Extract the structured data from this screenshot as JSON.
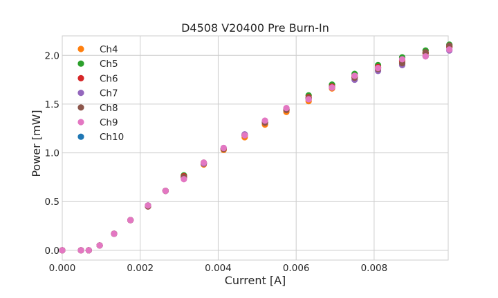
{
  "chart_data": {
    "type": "scatter",
    "title": "D4508 V20400 Pre Burn-In",
    "xlabel": "Current [A]",
    "ylabel": "Power [mW]",
    "xlim": [
      0.0,
      0.0099
    ],
    "ylim": [
      -0.1,
      2.2
    ],
    "x_ticks": [
      "0.000",
      "0.002",
      "0.004",
      "0.006",
      "0.008"
    ],
    "x_tick_values": [
      0.0,
      0.002,
      0.004,
      0.006,
      0.008
    ],
    "y_ticks": [
      "0.0",
      "0.5",
      "1.0",
      "1.5",
      "2.0"
    ],
    "y_tick_values": [
      0.0,
      0.5,
      1.0,
      1.5,
      2.0
    ],
    "grid": true,
    "legend_position": "upper-left",
    "x": [
      0.0,
      0.00048,
      0.00068,
      0.00096,
      0.00133,
      0.00175,
      0.0022,
      0.00265,
      0.00312,
      0.00363,
      0.00414,
      0.00468,
      0.0052,
      0.00575,
      0.00632,
      0.00692,
      0.0075,
      0.0081,
      0.00872,
      0.00932,
      0.00993
    ],
    "series": [
      {
        "name": "Ch4",
        "color": "#ff7f0e",
        "values": [
          0.0,
          0.0,
          0.0,
          0.05,
          0.17,
          0.31,
          0.46,
          0.61,
          0.75,
          0.88,
          1.03,
          1.16,
          1.29,
          1.42,
          1.53,
          1.66,
          1.78,
          1.87,
          1.94,
          2.02,
          2.09
        ]
      },
      {
        "name": "Ch5",
        "color": "#2ca02c",
        "values": [
          0.0,
          0.0,
          0.0,
          0.05,
          0.17,
          0.31,
          0.46,
          0.61,
          0.77,
          0.89,
          1.04,
          1.18,
          1.32,
          1.45,
          1.59,
          1.7,
          1.81,
          1.9,
          1.98,
          2.05,
          2.11
        ]
      },
      {
        "name": "Ch6",
        "color": "#d62728",
        "values": [
          0.0,
          0.0,
          0.0,
          0.05,
          0.17,
          0.31,
          0.45,
          0.61,
          0.76,
          0.89,
          1.04,
          1.18,
          1.31,
          1.44,
          1.57,
          1.68,
          1.79,
          1.88,
          1.95,
          2.03,
          2.09
        ]
      },
      {
        "name": "Ch7",
        "color": "#9467bd",
        "values": [
          0.0,
          0.0,
          0.0,
          0.05,
          0.17,
          0.31,
          0.46,
          0.61,
          0.74,
          0.89,
          1.05,
          1.19,
          1.31,
          1.45,
          1.55,
          1.67,
          1.75,
          1.84,
          1.9,
          1.99,
          2.05
        ]
      },
      {
        "name": "Ch8",
        "color": "#8c564b",
        "values": [
          0.0,
          0.0,
          0.0,
          0.05,
          0.17,
          0.31,
          0.45,
          0.61,
          0.75,
          0.9,
          1.04,
          1.18,
          1.31,
          1.44,
          1.56,
          1.67,
          1.77,
          1.86,
          1.92,
          2.03,
          2.1
        ]
      },
      {
        "name": "Ch9",
        "color": "#e377c2",
        "values": [
          0.0,
          0.0,
          0.0,
          0.05,
          0.17,
          0.31,
          0.46,
          0.61,
          0.73,
          0.9,
          1.05,
          1.18,
          1.33,
          1.46,
          1.55,
          1.67,
          1.79,
          1.87,
          1.96,
          1.99,
          2.06
        ]
      },
      {
        "name": "Ch10",
        "color": "#1f77b4",
        "values": [
          0.0,
          0.0,
          0.0,
          0.05,
          0.17,
          0.31,
          0.46,
          0.61,
          0.75,
          0.89,
          1.04,
          1.18,
          1.31,
          1.44,
          1.56,
          1.68,
          1.78,
          1.87,
          1.94,
          2.02,
          2.08
        ]
      }
    ],
    "draw_order": [
      6,
      0,
      1,
      2,
      3,
      4,
      5
    ]
  }
}
